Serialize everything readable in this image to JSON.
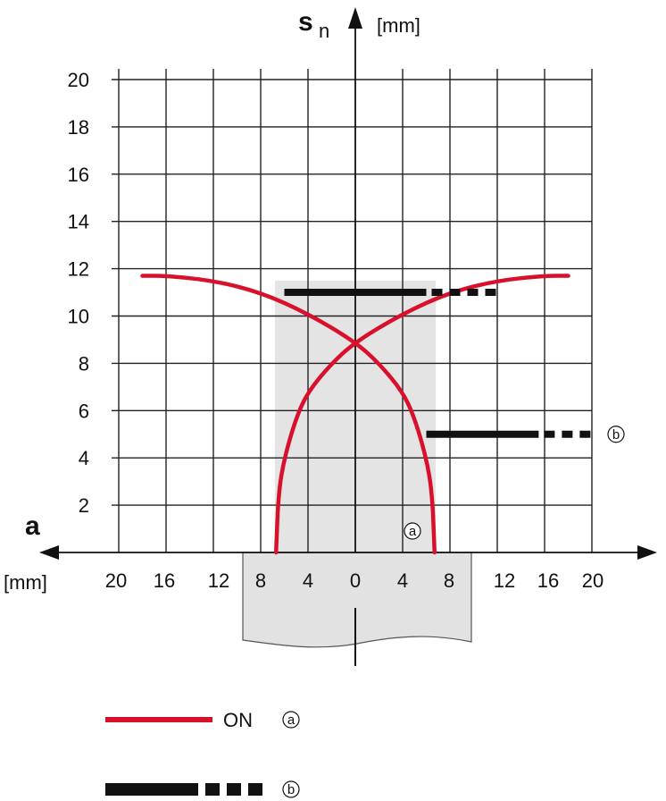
{
  "chart_data": {
    "type": "line",
    "x_axis": {
      "name": "a",
      "unit": "[mm]",
      "tick_labels": [
        "20",
        "16",
        "12",
        "8",
        "4",
        "0",
        "4",
        "8",
        "12",
        "16",
        "20"
      ]
    },
    "y_axis": {
      "name": "s",
      "name_subscript": "n",
      "unit": "[mm]",
      "ylim": [
        0,
        20
      ],
      "tick_labels": [
        "2",
        "4",
        "6",
        "8",
        "10",
        "12",
        "14",
        "16",
        "18",
        "20"
      ]
    },
    "grid": true,
    "shaded_region": {
      "x": [
        -6.8,
        -6.8,
        6.8,
        6.8
      ],
      "y": [
        0,
        11.5,
        11.5,
        0
      ]
    },
    "series": [
      {
        "marker": "a",
        "style": "red-solid",
        "x": [
          -18,
          -16,
          -12,
          -8,
          -4,
          0,
          2,
          4,
          5,
          6,
          6.5,
          6.7
        ],
        "y": [
          11.7,
          11.7,
          11.5,
          11.0,
          10.1,
          8.9,
          8.0,
          6.8,
          5.7,
          4.0,
          2.5,
          0.0
        ]
      },
      {
        "marker": "a",
        "style": "red-solid",
        "x": [
          18,
          16,
          12,
          8,
          4,
          0,
          -2,
          -4,
          -5,
          -6,
          -6.5,
          -6.7
        ],
        "y": [
          11.7,
          11.7,
          11.5,
          11.0,
          10.1,
          8.9,
          8.0,
          6.8,
          5.7,
          4.0,
          2.5,
          0.0
        ]
      },
      {
        "marker": "b",
        "style": "black-solid-then-dashed",
        "x": [
          -6.0,
          6.0,
          12.0
        ],
        "y": [
          11.0,
          11.0,
          11.0
        ]
      },
      {
        "marker": "b",
        "style": "black-solid-then-dashed",
        "x": [
          6.0,
          15.5,
          20.0
        ],
        "y": [
          5.0,
          5.0,
          5.0
        ]
      }
    ],
    "annotations": [
      {
        "text": "a",
        "x": 5.0,
        "y": 1.0
      },
      {
        "text": "b",
        "x": 22.0,
        "y": 5.0
      }
    ],
    "legend": {
      "placement": "bottom-left",
      "entries": [
        {
          "label": "ON",
          "marker": "a",
          "style": "red-solid"
        },
        {
          "label": "",
          "marker": "b",
          "style": "black-solid-then-dashed"
        }
      ]
    },
    "colors": {
      "curve": "#d9102b",
      "bar": "#111111",
      "grid": "#222222",
      "shade": "#e4e4e4",
      "sensor": "#e2e2e2"
    }
  }
}
